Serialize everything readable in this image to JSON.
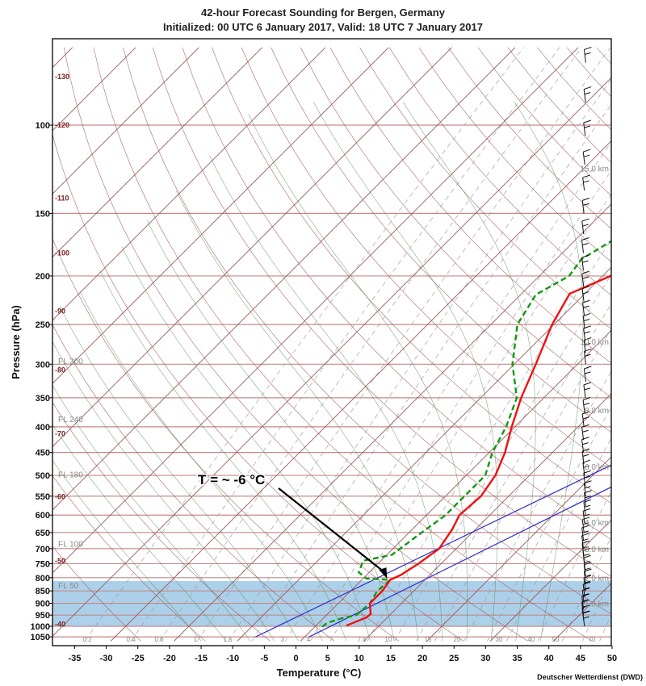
{
  "header": {
    "title": "42-hour Forecast Sounding for Bergen, Germany",
    "subtitle": "Initialized: 00 UTC 6 January 2017, Valid: 18 UTC 7 January 2017"
  },
  "credit": "Deutscher Wetterdienst (DWD)",
  "chart_data": {
    "type": "line",
    "diagram": "skew-T log-p",
    "title": "42-hour Forecast Sounding for Bergen, Germany",
    "subtitle": "Initialized: 00 UTC 6 January 2017, Valid: 18 UTC 7 January 2017",
    "xlabel": "Temperature (°C)",
    "ylabel": "Pressure (hPa)",
    "xlim": [
      -40,
      50
    ],
    "ylim": [
      1070,
      70
    ],
    "y_scale": "log",
    "x_ticks": [
      -35,
      -30,
      -25,
      -20,
      -15,
      -10,
      -5,
      0,
      5,
      10,
      15,
      20,
      25,
      30,
      35,
      40,
      45,
      50
    ],
    "y_ticks": [
      100,
      150,
      200,
      250,
      300,
      350,
      400,
      450,
      500,
      550,
      600,
      650,
      700,
      750,
      800,
      850,
      900,
      950,
      1000,
      1050
    ],
    "isotherm_labels": [
      {
        "t": -130,
        "p": 80
      },
      {
        "t": -120,
        "p": 100
      },
      {
        "t": -110,
        "p": 140
      },
      {
        "t": -100,
        "p": 180
      },
      {
        "t": -90,
        "p": 235
      },
      {
        "t": -80,
        "p": 308
      },
      {
        "t": -70,
        "p": 413
      },
      {
        "t": -60,
        "p": 552
      },
      {
        "t": -50,
        "p": 740
      },
      {
        "t": -40,
        "p": 990
      }
    ],
    "flight_levels": [
      {
        "label": "FL 300",
        "p": 301
      },
      {
        "label": "FL 240",
        "p": 393
      },
      {
        "label": "FL 180",
        "p": 506
      },
      {
        "label": "FL 100",
        "p": 697
      },
      {
        "label": "FL 50",
        "p": 843
      }
    ],
    "mixing_ratio_labels": [
      "0.2",
      "0.4",
      "0.6",
      "1",
      "1.5",
      "3",
      "4",
      "7.5",
      "10",
      "15",
      "20",
      "30",
      "40",
      "50",
      "70"
    ],
    "height_labels": [
      {
        "label": "15.0 km",
        "p": 122
      },
      {
        "label": "10.0 km",
        "p": 270
      },
      {
        "label": "8.0 km",
        "p": 370
      },
      {
        "label": "6.0 km",
        "p": 480
      },
      {
        "label": "4.0 km",
        "p": 620
      },
      {
        "label": "3.0 km",
        "p": 700
      },
      {
        "label": "2.0 km",
        "p": 800
      },
      {
        "label": "1.0 km",
        "p": 900
      }
    ],
    "series": [
      {
        "kind": "temperature",
        "color": "#ee1111",
        "points": [
          {
            "p": 997,
            "t": 4.8
          },
          {
            "p": 960,
            "t": 6.7
          },
          {
            "p": 945,
            "t": 6.8
          },
          {
            "p": 900,
            "t": 5.0
          },
          {
            "p": 850,
            "t": 5.0
          },
          {
            "p": 808,
            "t": 4.5
          },
          {
            "p": 790,
            "t": 5.4
          },
          {
            "p": 750,
            "t": 6.4
          },
          {
            "p": 700,
            "t": 7.3
          },
          {
            "p": 640,
            "t": 6.3
          },
          {
            "p": 600,
            "t": 5.2
          },
          {
            "p": 550,
            "t": 5.6
          },
          {
            "p": 500,
            "t": 4.6
          },
          {
            "p": 450,
            "t": 2.5
          },
          {
            "p": 400,
            "t": -0.5
          },
          {
            "p": 350,
            "t": -3.6
          },
          {
            "p": 300,
            "t": -6.6
          },
          {
            "p": 250,
            "t": -10.3
          },
          {
            "p": 217,
            "t": -12.4
          },
          {
            "p": 195,
            "t": -7.6
          },
          {
            "p": 170,
            "t": -3.9
          },
          {
            "p": 153,
            "t": 4.0
          },
          {
            "p": 140,
            "t": 7.5
          },
          {
            "p": 123,
            "t": 11.6
          },
          {
            "p": 112,
            "t": 18.5
          },
          {
            "p": 100,
            "t": 22.0
          },
          {
            "p": 85,
            "t": 27.8
          },
          {
            "p": 70,
            "t": 29.9
          }
        ]
      },
      {
        "kind": "dewpoint",
        "color": "#119911",
        "points": [
          {
            "p": 1003,
            "t": 1.2
          },
          {
            "p": 985,
            "t": 1.3
          },
          {
            "p": 965,
            "t": 2.8
          },
          {
            "p": 950,
            "t": 4.7
          },
          {
            "p": 900,
            "t": 5.0
          },
          {
            "p": 850,
            "t": 4.2
          },
          {
            "p": 808,
            "t": 4.5
          },
          {
            "p": 803,
            "t": 0.5
          },
          {
            "p": 780,
            "t": -1.7
          },
          {
            "p": 740,
            "t": -2.8
          },
          {
            "p": 720,
            "t": 0.8
          },
          {
            "p": 650,
            "t": 2.0
          },
          {
            "p": 600,
            "t": 3.0
          },
          {
            "p": 500,
            "t": 3.0
          },
          {
            "p": 450,
            "t": 0.5
          },
          {
            "p": 400,
            "t": -1.4
          },
          {
            "p": 350,
            "t": -4.3
          },
          {
            "p": 300,
            "t": -10.3
          },
          {
            "p": 250,
            "t": -15.8
          },
          {
            "p": 218,
            "t": -17.6
          },
          {
            "p": 200,
            "t": -15.3
          },
          {
            "p": 185,
            "t": -16.0
          },
          {
            "p": 165,
            "t": -13.4
          },
          {
            "p": 155,
            "t": -15.1
          },
          {
            "p": 140,
            "t": -10.8
          },
          {
            "p": 120,
            "t": -7.1
          },
          {
            "p": 100,
            "t": 1.9
          },
          {
            "p": 85,
            "t": 10.2
          },
          {
            "p": 75,
            "t": 16.8
          },
          {
            "p": 70,
            "t": 18.4
          }
        ]
      },
      {
        "kind": "parcel",
        "color": "#3333cc",
        "points": [
          {
            "p": 1050,
            "t": -7.8
          },
          {
            "p": 200,
            "t": 53.3
          }
        ]
      },
      {
        "kind": "parcel",
        "color": "#3333cc",
        "points": [
          {
            "p": 1050,
            "t": 0.7
          },
          {
            "p": 250,
            "t": 50.9
          }
        ]
      }
    ],
    "shaded_layer": {
      "p_top": 812,
      "p_bottom": 998,
      "color": "#a8cde8"
    },
    "annotation": {
      "text": "T = ~ -6 °C",
      "arrow_to": {
        "p": 807,
        "t": 4.1
      }
    },
    "wind_barbs": {
      "side": "right",
      "color": "#111111"
    }
  }
}
